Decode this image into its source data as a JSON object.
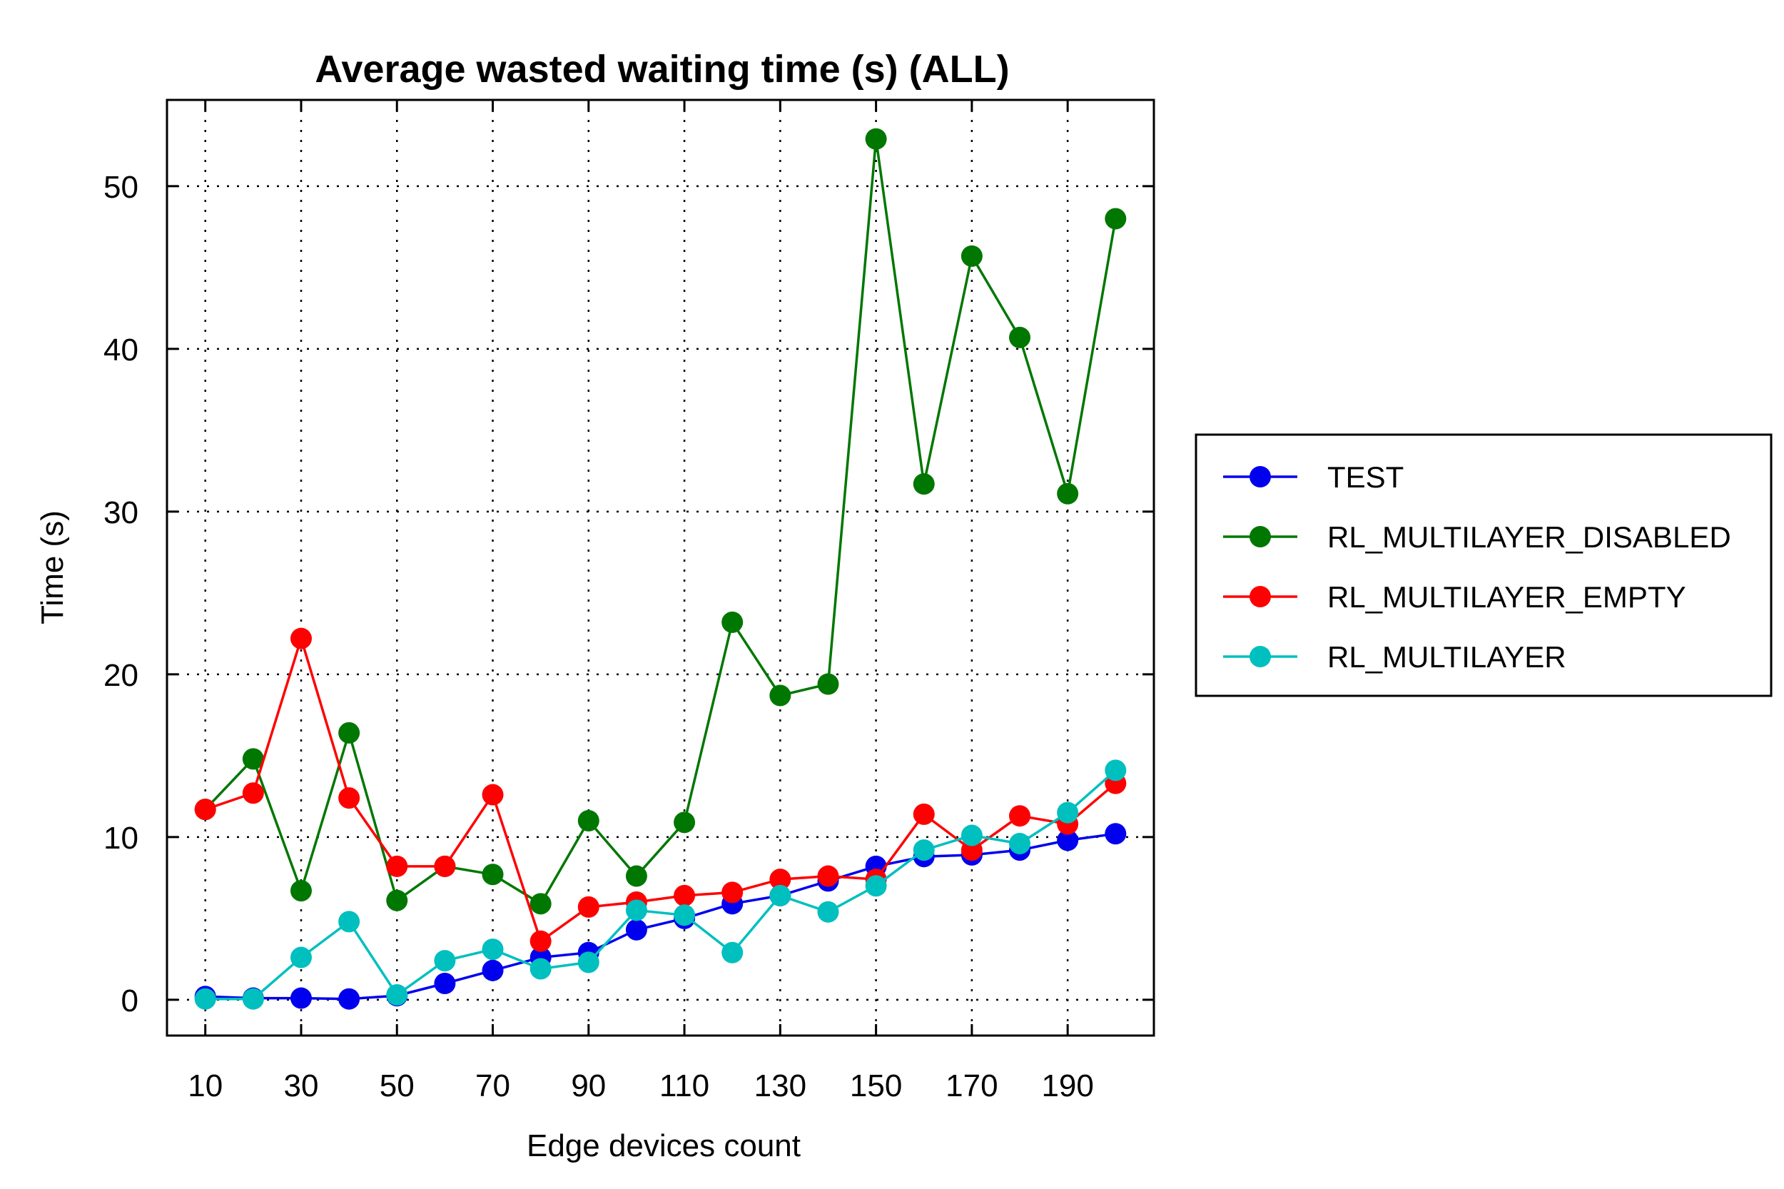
{
  "chart_data": {
    "type": "line",
    "title": "Average wasted waiting time (s) (ALL)",
    "xlabel": "Edge devices count",
    "ylabel": "Time (s)",
    "xlim": [
      2,
      208
    ],
    "ylim": [
      -2.2,
      55.3
    ],
    "x_ticks": [
      10,
      30,
      50,
      70,
      90,
      110,
      130,
      150,
      170,
      190
    ],
    "x_tick_labels": [
      "10",
      "30",
      "50",
      "70",
      "90",
      "110",
      "130",
      "150",
      "170",
      "190"
    ],
    "y_ticks": [
      0,
      10,
      20,
      30,
      40,
      50
    ],
    "y_tick_labels": [
      "0",
      "10",
      "20",
      "30",
      "40",
      "50"
    ],
    "grid": true,
    "legend_position": "right",
    "x": [
      10,
      20,
      30,
      40,
      50,
      60,
      70,
      80,
      90,
      100,
      110,
      120,
      130,
      140,
      150,
      160,
      170,
      180,
      190,
      200
    ],
    "series": [
      {
        "name": "TEST",
        "color": "#0000ee",
        "values": [
          0.2,
          0.1,
          0.1,
          0.05,
          0.25,
          1.0,
          1.8,
          2.6,
          2.9,
          4.3,
          5.0,
          5.9,
          6.4,
          7.3,
          8.2,
          8.8,
          8.9,
          9.2,
          9.8,
          10.2
        ]
      },
      {
        "name": "RL_MULTILAYER_DISABLED",
        "color": "#007700",
        "values": [
          11.7,
          14.8,
          6.7,
          16.4,
          6.1,
          8.2,
          7.7,
          5.9,
          11.0,
          7.6,
          10.9,
          23.2,
          18.7,
          19.4,
          52.9,
          31.7,
          45.7,
          40.7,
          31.1,
          48.0
        ]
      },
      {
        "name": "RL_MULTILAYER_EMPTY",
        "color": "#ff0000",
        "values": [
          11.7,
          12.7,
          22.2,
          12.4,
          8.2,
          8.2,
          12.6,
          3.6,
          5.7,
          6.0,
          6.4,
          6.6,
          7.4,
          7.6,
          7.4,
          11.4,
          9.2,
          11.3,
          10.8,
          13.3
        ]
      },
      {
        "name": "RL_MULTILAYER",
        "color": "#00bfbf",
        "values": [
          0.05,
          0.05,
          2.6,
          4.8,
          0.3,
          2.4,
          3.1,
          1.9,
          2.3,
          5.5,
          5.2,
          2.9,
          6.4,
          5.4,
          7.0,
          9.2,
          10.1,
          9.6,
          11.5,
          14.1
        ]
      }
    ]
  }
}
